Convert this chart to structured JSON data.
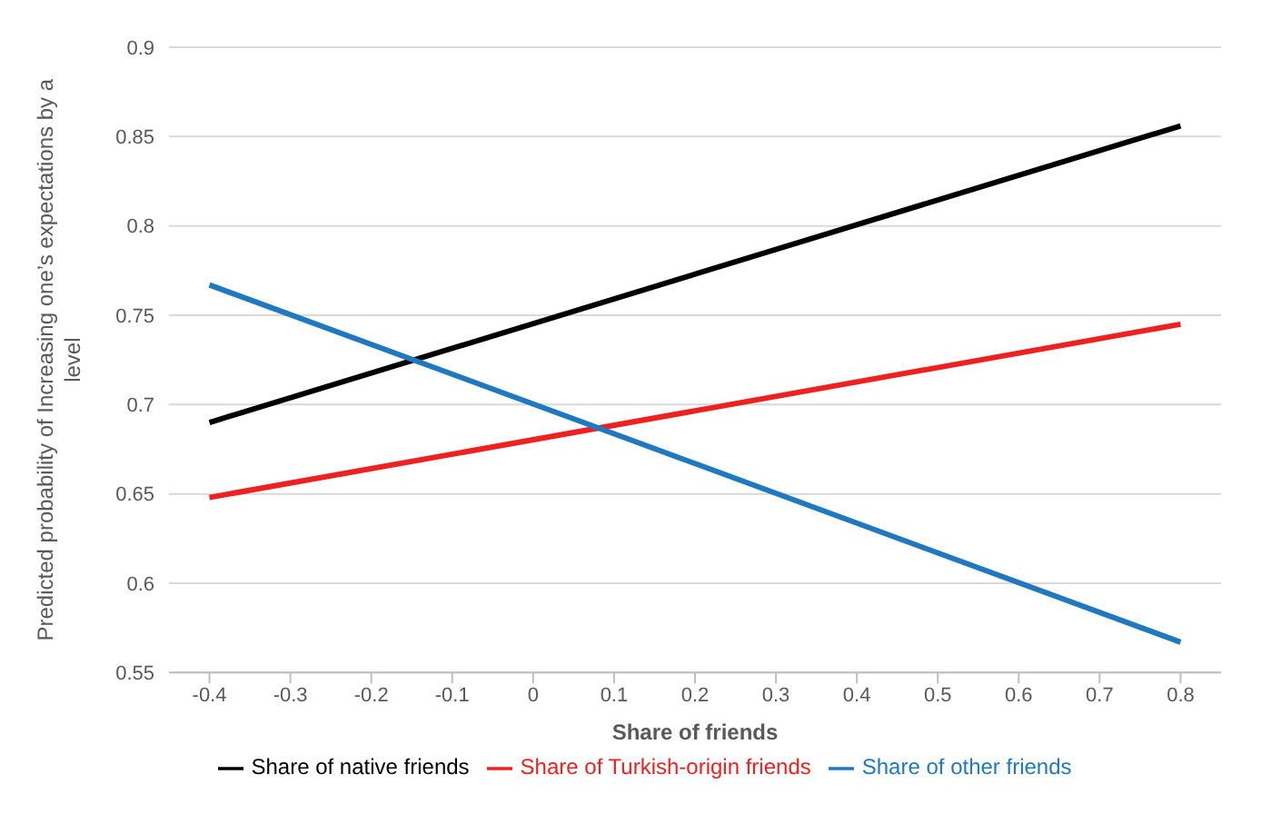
{
  "chart_data": {
    "type": "line",
    "xlabel": "Share of friends",
    "ylabel": "Predicted probability of Increasing one’s expectations by a level",
    "xlim": [
      -0.45,
      0.85
    ],
    "xticks": [
      -0.4,
      -0.3,
      -0.2,
      -0.1,
      0,
      0.1,
      0.2,
      0.3,
      0.4,
      0.5,
      0.6,
      0.7,
      0.8
    ],
    "ylim": [
      0.55,
      0.9
    ],
    "yticks": [
      0.55,
      0.6,
      0.65,
      0.7,
      0.75,
      0.8,
      0.85,
      0.9
    ],
    "grid": "y",
    "legend": "bottom",
    "marker": "none",
    "line_style": "solid",
    "x": [
      -0.4,
      0.8
    ],
    "series": [
      {
        "name": "Share of native friends",
        "color": "#000000",
        "values": [
          0.69,
          0.856
        ]
      },
      {
        "name": "Share of Turkish-origin friends",
        "color": "#ee2020",
        "values": [
          0.648,
          0.745
        ]
      },
      {
        "name": "Share of other friends",
        "color": "#1f78c0",
        "values": [
          0.767,
          0.567
        ]
      }
    ]
  }
}
